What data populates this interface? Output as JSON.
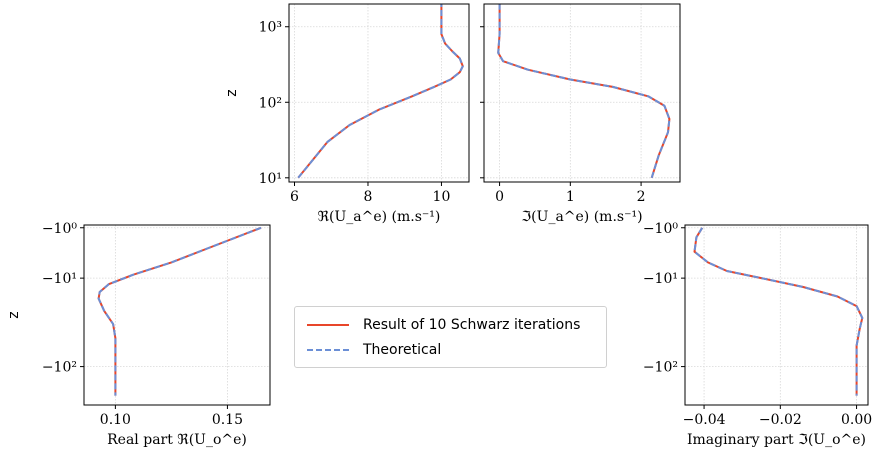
{
  "colors": {
    "result": "#e8462a",
    "theoretical": "#6b8fd6"
  },
  "legend": {
    "items": [
      {
        "label": "Result of 10 Schwarz iterations",
        "color": "#e8462a",
        "style": "solid"
      },
      {
        "label": "Theoretical",
        "color": "#6b8fd6",
        "style": "dashed"
      }
    ],
    "placement": "center"
  },
  "chart_data": [
    {
      "type": "line",
      "ylabel": "z",
      "xlabel": "ℜ(U_a^e) (m.s⁻¹)",
      "yscale": "log",
      "xlim": [
        5.85,
        10.75
      ],
      "ylim": [
        8.8,
        2000
      ],
      "xticks": [
        6,
        8,
        10
      ],
      "xtick_labels": [
        "6",
        "8",
        "10"
      ],
      "yticks": [
        10,
        100,
        1000
      ],
      "ytick_labels": [
        "10¹",
        "10²",
        "10³"
      ],
      "grid": true,
      "series": [
        {
          "role": "result",
          "x": [
            6.1,
            6.9,
            7.5,
            8.3,
            9.2,
            9.8,
            10.25,
            10.5,
            10.58,
            10.5,
            10.3,
            10.1,
            10.0,
            10.0,
            10.0
          ],
          "y": [
            10,
            30,
            50,
            80,
            120,
            160,
            200,
            250,
            300,
            380,
            470,
            600,
            800,
            1200,
            2000
          ]
        },
        {
          "role": "theoretical",
          "x": [
            6.1,
            6.9,
            7.5,
            8.3,
            9.2,
            9.8,
            10.25,
            10.5,
            10.58,
            10.5,
            10.3,
            10.1,
            10.0,
            10.0,
            10.0
          ],
          "y": [
            10,
            30,
            50,
            80,
            120,
            160,
            200,
            250,
            300,
            380,
            470,
            600,
            800,
            1200,
            2000
          ]
        }
      ]
    },
    {
      "type": "line",
      "xlabel": "ℑ(U_a^e) (m.s⁻¹)",
      "yscale": "log",
      "xlim": [
        -0.22,
        2.55
      ],
      "ylim": [
        8.8,
        2000
      ],
      "xticks": [
        0,
        1,
        2
      ],
      "xtick_labels": [
        "0",
        "1",
        "2"
      ],
      "grid": true,
      "series": [
        {
          "role": "result",
          "x": [
            2.15,
            2.25,
            2.38,
            2.4,
            2.33,
            2.1,
            1.6,
            1.0,
            0.4,
            0.05,
            -0.02,
            -0.01,
            0.0,
            0.0,
            0.0
          ],
          "y": [
            10,
            20,
            40,
            60,
            90,
            120,
            160,
            200,
            270,
            350,
            450,
            600,
            800,
            1200,
            2000
          ]
        },
        {
          "role": "theoretical",
          "x": [
            2.15,
            2.25,
            2.38,
            2.4,
            2.33,
            2.1,
            1.6,
            1.0,
            0.4,
            0.05,
            -0.02,
            -0.01,
            0.0,
            0.0,
            0.0
          ],
          "y": [
            10,
            20,
            40,
            60,
            90,
            120,
            160,
            200,
            270,
            350,
            450,
            600,
            800,
            1200,
            2000
          ]
        }
      ]
    },
    {
      "type": "line",
      "ylabel": "z",
      "xlabel": "Real part ℜ(U_o^e)",
      "yscale": "symlog-negative",
      "xlim": [
        0.086,
        0.169
      ],
      "ylim": [
        -0.75,
        -250
      ],
      "xticks": [
        0.1,
        0.15
      ],
      "xtick_labels": [
        "0.10",
        "0.15"
      ],
      "yticks": [
        -1,
        -10,
        -100
      ],
      "ytick_labels": [
        "−10⁰",
        "−10¹",
        "−10²"
      ],
      "grid": true,
      "series": [
        {
          "role": "result",
          "x": [
            0.165,
            0.141,
            0.125,
            0.108,
            0.097,
            0.093,
            0.0925,
            0.095,
            0.099,
            0.1,
            0.1,
            0.1
          ],
          "y": [
            -1,
            -3.5,
            -6,
            -9,
            -12,
            -15,
            -18,
            -25,
            -35,
            -50,
            -100,
            -200
          ]
        },
        {
          "role": "theoretical",
          "x": [
            0.165,
            0.141,
            0.125,
            0.108,
            0.097,
            0.093,
            0.0925,
            0.095,
            0.099,
            0.1,
            0.1,
            0.1
          ],
          "y": [
            -1,
            -3.5,
            -6,
            -9,
            -12,
            -15,
            -18,
            -25,
            -35,
            -50,
            -100,
            -200
          ]
        }
      ]
    },
    {
      "type": "line",
      "xlabel": "Imaginary part ℑ(U_o^e)",
      "yscale": "symlog-negative",
      "xlim": [
        -0.045,
        0.003
      ],
      "ylim": [
        -0.75,
        -250
      ],
      "xticks": [
        -0.04,
        -0.02,
        0.0
      ],
      "xtick_labels": [
        "−0.04",
        "−0.02",
        "0.00"
      ],
      "yticks": [
        -1,
        -10,
        -100
      ],
      "ytick_labels": [
        "−10⁰",
        "−10¹",
        "−10²"
      ],
      "grid": true,
      "series": [
        {
          "role": "result",
          "x": [
            -0.0405,
            -0.042,
            -0.0425,
            -0.039,
            -0.034,
            -0.025,
            -0.014,
            -0.005,
            0.0,
            0.0015,
            0.0008,
            0.0,
            0.0,
            0.0
          ],
          "y": [
            -1,
            -2,
            -4,
            -6,
            -8,
            -10,
            -13,
            -17,
            -22,
            -30,
            -40,
            -60,
            -100,
            -200
          ]
        },
        {
          "role": "theoretical",
          "x": [
            -0.0405,
            -0.042,
            -0.0425,
            -0.039,
            -0.034,
            -0.025,
            -0.014,
            -0.005,
            0.0,
            0.0015,
            0.0008,
            0.0,
            0.0,
            0.0
          ],
          "y": [
            -1,
            -2,
            -4,
            -6,
            -8,
            -10,
            -13,
            -17,
            -22,
            -30,
            -40,
            -60,
            -100,
            -200
          ]
        }
      ]
    }
  ]
}
